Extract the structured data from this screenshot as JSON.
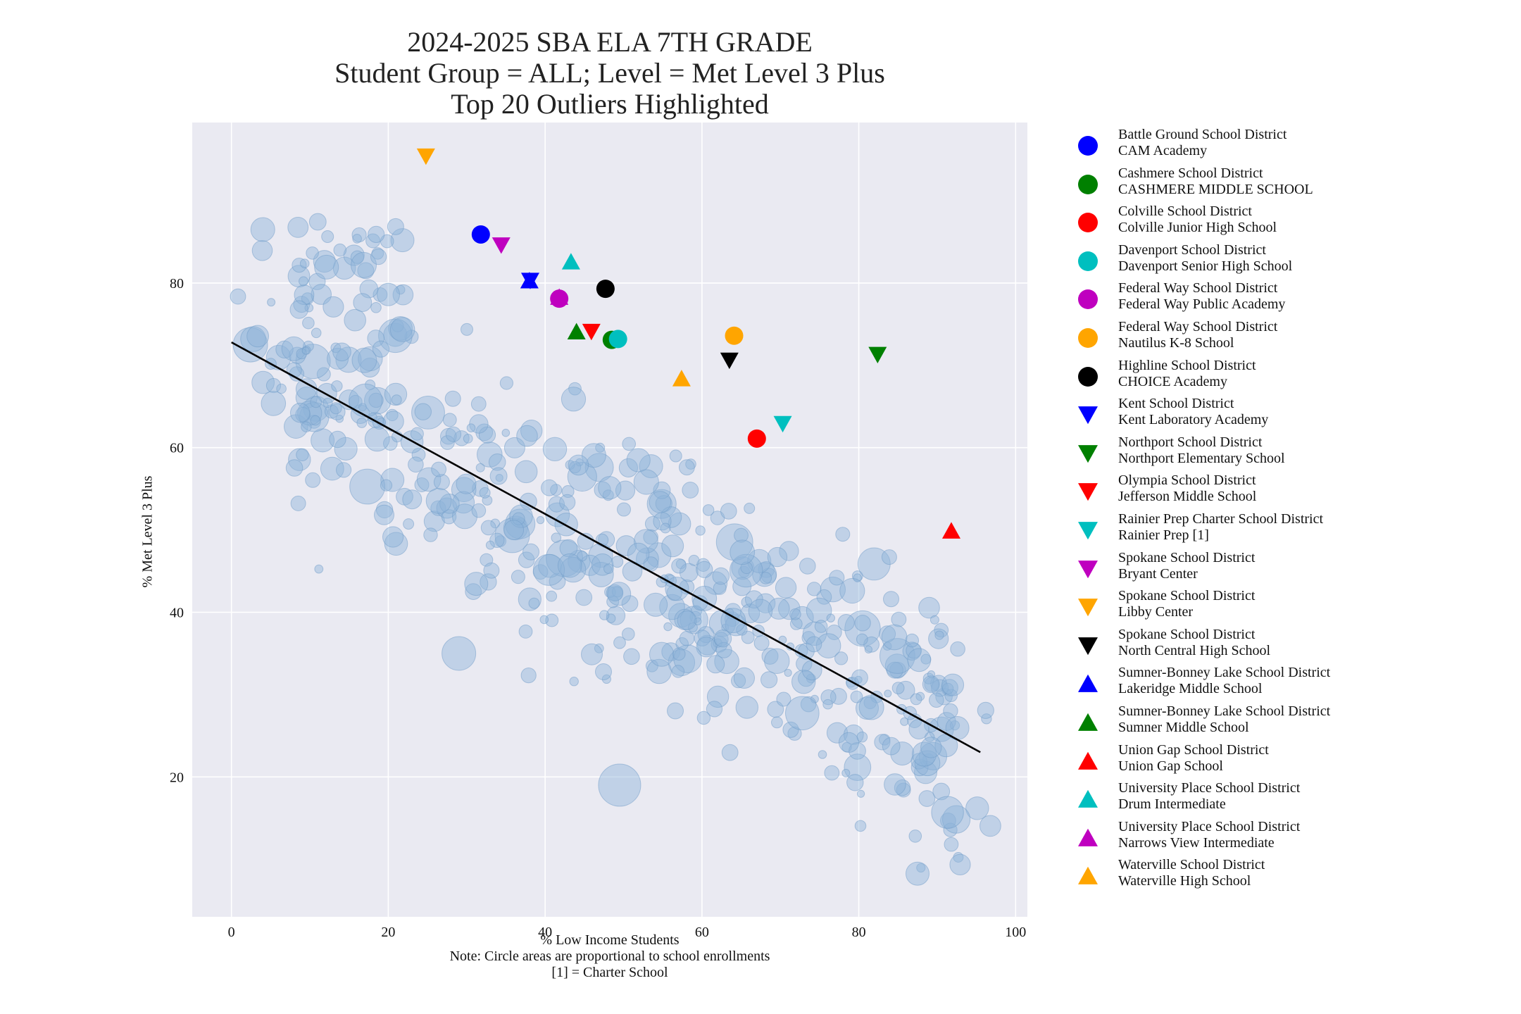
{
  "chart_data": {
    "type": "scatter",
    "title": [
      "2024-2025 SBA ELA 7TH GRADE",
      "Student Group = ALL; Level = Met Level 3 Plus",
      "Top 20 Outliers Highlighted"
    ],
    "xlabel": "% Low Income Students",
    "ylabel": "% Met Level 3 Plus",
    "notes": [
      "Note: Circle areas are proportional to school enrollments",
      "[1] = Charter School"
    ],
    "xlim": [
      -5,
      101.5
    ],
    "ylim": [
      3,
      99.5
    ],
    "xticks": [
      0,
      20,
      40,
      60,
      80,
      100
    ],
    "yticks": [
      20,
      40,
      60,
      80
    ],
    "grid": true,
    "legend_position": "right, outside plot",
    "trend_line": {
      "x": [
        0,
        95.5
      ],
      "y": [
        72.8,
        23
      ]
    },
    "background_points": {
      "color": "#8fb4d9",
      "seed": 7,
      "count": 560,
      "description": "All other schools (semi-transparent circles sized by enrollment)"
    },
    "outliers": [
      {
        "district": "Battle Ground School District",
        "school": "CAM Academy",
        "marker": "circle",
        "color": "#0000ff",
        "x": 31.8,
        "y": 85.9
      },
      {
        "district": "Cashmere School District",
        "school": "CASHMERE MIDDLE SCHOOL",
        "marker": "circle",
        "color": "#008000",
        "x": 48.5,
        "y": 73.1
      },
      {
        "district": "Colville School District",
        "school": "Colville Junior High School",
        "marker": "circle",
        "color": "#ff0000",
        "x": 67.0,
        "y": 61.1
      },
      {
        "district": "Davenport School District",
        "school": "Davenport Senior High School",
        "marker": "circle",
        "color": "#00bfbf",
        "x": 49.3,
        "y": 73.2
      },
      {
        "district": "Federal Way School District",
        "school": "Federal Way Public Academy",
        "marker": "circle",
        "color": "#bf00bf",
        "x": 41.8,
        "y": 78.1
      },
      {
        "district": "Federal Way School District",
        "school": "Nautilus K-8 School",
        "marker": "circle",
        "color": "#ffa500",
        "x": 64.1,
        "y": 73.6
      },
      {
        "district": "Highline School District",
        "school": "CHOICE Academy",
        "marker": "circle",
        "color": "#000000",
        "x": 47.7,
        "y": 79.3
      },
      {
        "district": "Kent School District",
        "school": "Kent Laboratory Academy",
        "marker": "triangle-down",
        "color": "#0000ff",
        "x": 38.1,
        "y": 80.3
      },
      {
        "district": "Northport School District",
        "school": "Northport Elementary School",
        "marker": "triangle-down",
        "color": "#008000",
        "x": 82.4,
        "y": 71.3
      },
      {
        "district": "Olympia School District",
        "school": "Jefferson Middle School",
        "marker": "triangle-down",
        "color": "#ff0000",
        "x": 45.9,
        "y": 74.1
      },
      {
        "district": "Rainier Prep Charter School District",
        "school": "Rainier Prep [1]",
        "marker": "triangle-down",
        "color": "#00bfbf",
        "x": 70.3,
        "y": 62.9
      },
      {
        "district": "Spokane School District",
        "school": "Bryant Center",
        "marker": "triangle-down",
        "color": "#bf00bf",
        "x": 34.4,
        "y": 84.6
      },
      {
        "district": "Spokane School District",
        "school": "Libby Center",
        "marker": "triangle-down",
        "color": "#ffa500",
        "x": 24.8,
        "y": 95.4
      },
      {
        "district": "Spokane School District",
        "school": "North Central High School",
        "marker": "triangle-down",
        "color": "#000000",
        "x": 63.5,
        "y": 70.6
      },
      {
        "district": "Sumner-Bonney Lake School District",
        "school": "Lakeridge Middle School",
        "marker": "triangle-up",
        "color": "#0000ff",
        "x": 38.0,
        "y": 80.3
      },
      {
        "district": "Sumner-Bonney Lake School District",
        "school": "Sumner Middle School",
        "marker": "triangle-up",
        "color": "#008000",
        "x": 44.0,
        "y": 74.1
      },
      {
        "district": "Union Gap School District",
        "school": "Union Gap School",
        "marker": "triangle-up",
        "color": "#ff0000",
        "x": 91.8,
        "y": 49.9
      },
      {
        "district": "University Place School District",
        "school": "Drum Intermediate",
        "marker": "triangle-up",
        "color": "#00bfbf",
        "x": 43.3,
        "y": 82.6
      },
      {
        "district": "University Place School District",
        "school": "Narrows View Intermediate",
        "marker": "triangle-up",
        "color": "#bf00bf",
        "x": 41.8,
        "y": 78.3
      },
      {
        "district": "Waterville School District",
        "school": "Waterville High School",
        "marker": "triangle-up",
        "color": "#ffa500",
        "x": 57.4,
        "y": 68.4
      }
    ]
  }
}
